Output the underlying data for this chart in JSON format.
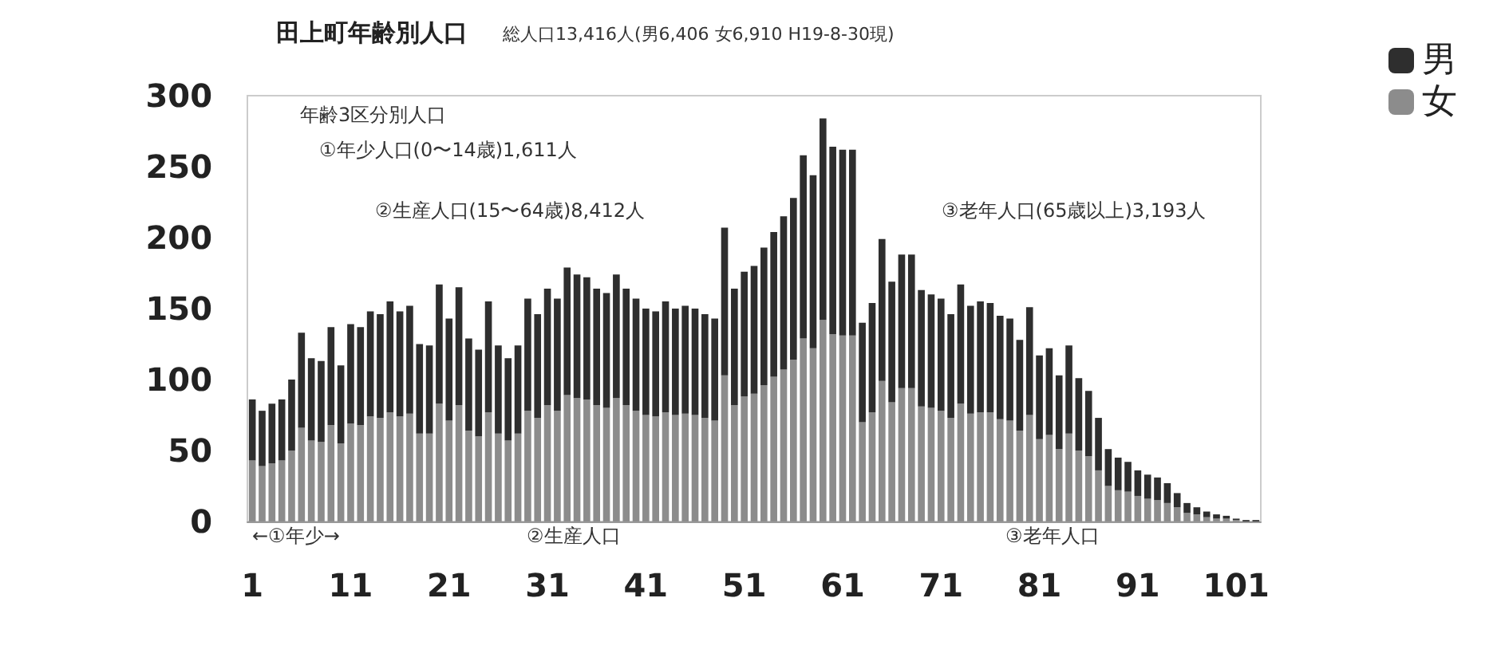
{
  "chart_data": {
    "type": "bar",
    "title": "田上町年齢別人口",
    "subtitle": "総人口13,416人(男6,406 女6,910 H19-8-30現)",
    "categories": [
      "1",
      null,
      null,
      null,
      null,
      null,
      null,
      null,
      null,
      null,
      "11",
      null,
      null,
      null,
      null,
      null,
      null,
      null,
      null,
      null,
      "21",
      null,
      null,
      null,
      null,
      null,
      null,
      null,
      null,
      null,
      "31",
      null,
      null,
      null,
      null,
      null,
      null,
      null,
      null,
      null,
      "41",
      null,
      null,
      null,
      null,
      null,
      null,
      null,
      null,
      null,
      "51",
      null,
      null,
      null,
      null,
      null,
      null,
      null,
      null,
      null,
      "61",
      null,
      null,
      null,
      null,
      null,
      null,
      null,
      null,
      null,
      "71",
      null,
      null,
      null,
      null,
      null,
      null,
      null,
      null,
      null,
      "81",
      null,
      null,
      null,
      null,
      null,
      null,
      null,
      null,
      null,
      "91",
      null,
      null,
      null,
      null,
      null,
      null,
      null,
      null,
      null,
      "101",
      null,
      null
    ],
    "stacked": true,
    "series": [
      {
        "name": "女",
        "color": "#8c8c8c",
        "values": [
          43,
          39,
          41,
          43,
          50,
          66,
          57,
          56,
          68,
          55,
          69,
          68,
          74,
          73,
          77,
          74,
          76,
          62,
          62,
          83,
          71,
          82,
          64,
          60,
          77,
          62,
          57,
          62,
          78,
          73,
          82,
          78,
          89,
          87,
          86,
          82,
          80,
          87,
          82,
          78,
          75,
          74,
          77,
          75,
          76,
          75,
          73,
          71,
          103,
          82,
          88,
          90,
          96,
          102,
          107,
          114,
          129,
          122,
          142,
          132,
          131,
          131,
          70,
          77,
          99,
          84,
          94,
          94,
          81,
          80,
          78,
          73,
          83,
          76,
          77,
          77,
          72,
          71,
          64,
          75,
          58,
          61,
          51,
          62,
          50,
          46,
          36,
          25,
          22,
          21,
          18,
          16,
          15,
          13,
          10,
          6,
          5,
          3,
          2,
          2,
          1,
          0,
          0
        ]
      },
      {
        "name": "男",
        "color": "#2e2e2e",
        "values": [
          43,
          39,
          42,
          43,
          50,
          67,
          58,
          57,
          69,
          55,
          70,
          69,
          74,
          73,
          78,
          74,
          76,
          63,
          62,
          84,
          72,
          83,
          65,
          61,
          78,
          62,
          58,
          62,
          79,
          73,
          82,
          79,
          90,
          87,
          86,
          82,
          81,
          87,
          82,
          79,
          75,
          74,
          78,
          75,
          76,
          75,
          73,
          72,
          104,
          82,
          88,
          90,
          97,
          102,
          108,
          114,
          129,
          122,
          142,
          132,
          131,
          131,
          70,
          77,
          100,
          85,
          94,
          94,
          82,
          80,
          79,
          73,
          84,
          76,
          78,
          77,
          73,
          72,
          64,
          76,
          59,
          61,
          52,
          62,
          51,
          46,
          37,
          26,
          23,
          21,
          18,
          17,
          16,
          14,
          10,
          7,
          5,
          4,
          3,
          2,
          1,
          1,
          1
        ]
      }
    ],
    "ylim": [
      0,
      300
    ],
    "yticks": [
      0,
      50,
      100,
      150,
      200,
      250,
      300
    ],
    "legend": "top right",
    "grid": false,
    "annotations": [
      "年齢3区分別人口",
      "①年少人口(0〜14歳)1,611人",
      "②生産人口(15〜64歳)8,412人",
      "③老年人口(65歳以上)3,193人",
      "←①年少→",
      "②生産人口",
      "③老年人口"
    ]
  }
}
